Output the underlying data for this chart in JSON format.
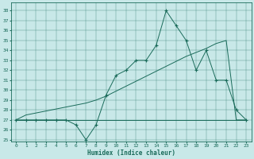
{
  "xlabel": "Humidex (Indice chaleur)",
  "bg_color": "#c8e8e8",
  "line_color": "#1a6b5a",
  "xlim": [
    -0.5,
    23.5
  ],
  "ylim": [
    24.8,
    38.8
  ],
  "yticks": [
    25,
    26,
    27,
    28,
    29,
    30,
    31,
    32,
    33,
    34,
    35,
    36,
    37,
    38
  ],
  "xticks": [
    0,
    1,
    2,
    3,
    4,
    5,
    6,
    7,
    8,
    9,
    10,
    11,
    12,
    13,
    14,
    15,
    16,
    17,
    18,
    19,
    20,
    21,
    22,
    23
  ],
  "hours": [
    0,
    1,
    2,
    3,
    4,
    5,
    6,
    7,
    8,
    9,
    10,
    11,
    12,
    13,
    14,
    15,
    16,
    17,
    18,
    19,
    20,
    21,
    22,
    23
  ],
  "humidex_main": [
    27,
    27,
    27,
    27,
    27,
    27,
    26.5,
    25,
    26.5,
    29.5,
    31.5,
    32,
    33,
    33,
    34.5,
    38,
    36.5,
    35,
    32,
    34,
    31,
    31,
    28,
    27
  ],
  "humidex_trend": [
    27,
    27.5,
    27.7,
    27.9,
    28.1,
    28.3,
    28.5,
    28.7,
    29.0,
    29.4,
    29.9,
    30.4,
    30.9,
    31.4,
    31.9,
    32.4,
    32.9,
    33.4,
    33.8,
    34.2,
    34.7,
    35.0,
    27,
    27
  ],
  "humidex_flat": [
    27,
    27,
    27,
    27,
    27,
    27,
    27,
    27,
    27,
    27,
    27,
    27,
    27,
    27,
    27,
    27,
    27,
    27,
    27,
    27,
    27,
    27,
    27,
    27
  ]
}
